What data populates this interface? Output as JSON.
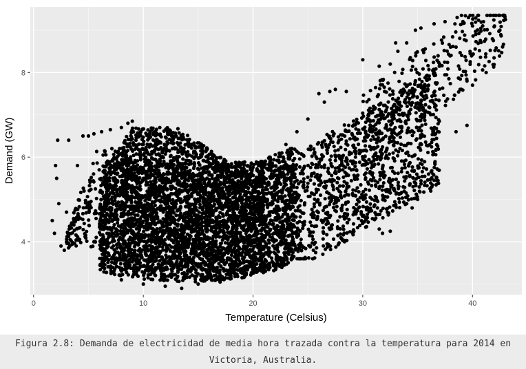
{
  "chart_data": {
    "type": "scatter",
    "title": "",
    "xlabel": "Temperature (Celsius)",
    "ylabel": "Demand (GW)",
    "xlim": [
      -0.3,
      44.5
    ],
    "ylim": [
      2.75,
      9.55
    ],
    "x_ticks": [
      0,
      10,
      20,
      30,
      40
    ],
    "y_ticks": [
      4,
      6,
      8
    ],
    "grid": true,
    "legend": "none",
    "colors": {
      "panel": "#ebebeb",
      "grid_major": "#ffffff",
      "grid_minor": "#f5f5f5",
      "point": "#000000"
    },
    "clusters": [
      {
        "x_range": [
          6,
          24
        ],
        "y_range": [
          3.0,
          6.6
        ],
        "density": "very high"
      },
      {
        "x_range": [
          24,
          37
        ],
        "y_range": [
          3.6,
          7.5
        ],
        "density": "medium"
      },
      {
        "x_range": [
          30,
          43
        ],
        "y_range": [
          6.5,
          9.3
        ],
        "density": "low"
      },
      {
        "x_range": [
          1.5,
          6
        ],
        "y_range": [
          3.8,
          6.5
        ],
        "density": "low"
      }
    ],
    "points": [
      [
        1.7,
        4.5
      ],
      [
        1.9,
        4.2
      ],
      [
        2.2,
        6.4
      ],
      [
        2.0,
        5.8
      ],
      [
        2.1,
        5.5
      ],
      [
        2.3,
        4.9
      ],
      [
        2.5,
        3.9
      ],
      [
        2.8,
        3.8
      ],
      [
        3.0,
        4.0
      ],
      [
        3.3,
        3.9
      ],
      [
        3.0,
        4.7
      ],
      [
        3.2,
        6.4
      ],
      [
        38.6,
        9.3
      ],
      [
        39.0,
        9.35
      ],
      [
        40.0,
        9.1
      ],
      [
        41.0,
        9.2
      ],
      [
        42.0,
        9.1
      ],
      [
        43.0,
        9.25
      ],
      [
        42.5,
        9.0
      ],
      [
        37.5,
        9.2
      ],
      [
        36.5,
        9.15
      ],
      [
        35.3,
        9.05
      ],
      [
        34.8,
        9.0
      ],
      [
        38.0,
        8.6
      ],
      [
        39.5,
        7.8
      ],
      [
        40.0,
        7.7
      ],
      [
        39.5,
        6.75
      ],
      [
        38.5,
        6.6
      ],
      [
        36.4,
        5.6
      ],
      [
        36.3,
        5.3
      ],
      [
        36.2,
        5.2
      ],
      [
        33.0,
        8.7
      ],
      [
        33.2,
        8.5
      ],
      [
        34.0,
        8.7
      ],
      [
        32.5,
        8.2
      ],
      [
        31.5,
        8.15
      ],
      [
        30.0,
        8.3
      ],
      [
        27.5,
        7.6
      ],
      [
        27.0,
        7.55
      ],
      [
        26.0,
        7.5
      ],
      [
        26.5,
        7.3
      ],
      [
        28.5,
        7.55
      ],
      [
        36.0,
        7.7
      ],
      [
        35.5,
        7.6
      ],
      [
        37.0,
        8.2
      ],
      [
        38.5,
        8.6
      ],
      [
        9.0,
        6.85
      ],
      [
        8.6,
        6.8
      ],
      [
        8.0,
        6.7
      ],
      [
        11.5,
        6.7
      ],
      [
        12.2,
        6.6
      ],
      [
        13.0,
        6.5
      ],
      [
        13.5,
        6.5
      ],
      [
        19.5,
        5.8
      ],
      [
        20.5,
        5.8
      ],
      [
        21.5,
        6.0
      ],
      [
        23.0,
        6.3
      ],
      [
        24.0,
        6.6
      ],
      [
        25.0,
        6.9
      ],
      [
        23.5,
        3.6
      ],
      [
        25.5,
        3.8
      ],
      [
        27.0,
        3.9
      ],
      [
        31.5,
        4.3
      ],
      [
        32.5,
        4.25
      ],
      [
        31.8,
        4.2
      ],
      [
        34.5,
        4.8
      ],
      [
        34.0,
        4.9
      ],
      [
        35.0,
        5.0
      ],
      [
        8.0,
        3.1
      ],
      [
        10.0,
        3.0
      ],
      [
        12.0,
        2.95
      ],
      [
        13.5,
        2.9
      ],
      [
        15.0,
        3.0
      ],
      [
        17.0,
        3.05
      ],
      [
        19.0,
        3.15
      ],
      [
        21.0,
        3.35
      ],
      [
        5.5,
        4.0
      ],
      [
        4.6,
        5.2
      ],
      [
        4.5,
        6.5
      ],
      [
        5.0,
        6.5
      ],
      [
        5.5,
        6.55
      ],
      [
        6.2,
        6.6
      ],
      [
        7.0,
        6.65
      ],
      [
        4.0,
        5.8
      ]
    ]
  },
  "caption": {
    "line1": "Figura 2.8: Demanda de electricidad de media hora trazada contra la temperatura para 2014 en",
    "line2": "Victoria, Australia."
  }
}
